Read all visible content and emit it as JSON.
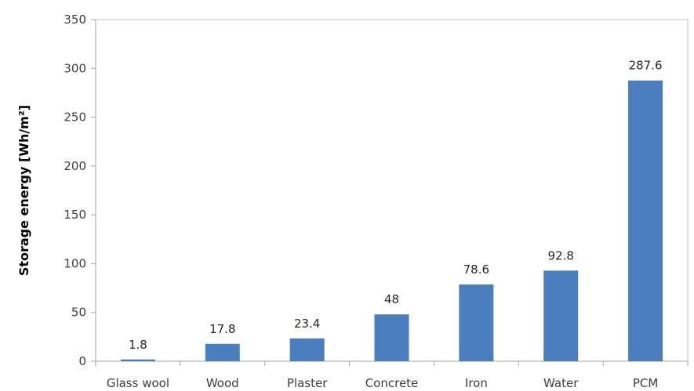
{
  "chart_data": {
    "type": "bar",
    "title": "",
    "xlabel": "",
    "ylabel": "Storage energy [Wh/m²]",
    "categories": [
      "Glass wool",
      "Wood",
      "Plaster",
      "Concrete",
      "Iron",
      "Water",
      "PCM"
    ],
    "values": [
      1.8,
      17.8,
      23.4,
      48,
      78.6,
      92.8,
      287.6
    ],
    "data_labels": [
      "1.8",
      "17.8",
      "23.4",
      "48",
      "78.6",
      "92.8",
      "287.6"
    ],
    "ylim": [
      0,
      350
    ],
    "yticks": [
      0,
      50,
      100,
      150,
      200,
      250,
      300,
      350
    ],
    "grid": false,
    "legend": "none",
    "bar_color": "#4a7ebf"
  }
}
